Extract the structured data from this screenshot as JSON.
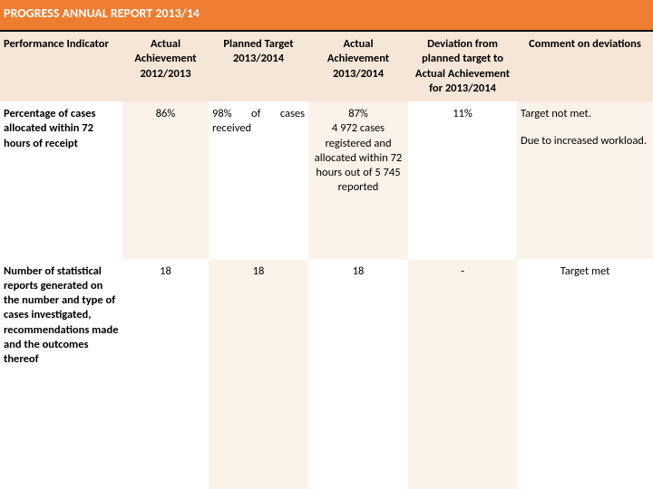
{
  "title": "PROGRESS ANNUAL REPORT 2013/14",
  "colors": {
    "headerBg": "#ed7d31",
    "headerText": "#ffffff",
    "titleBorder": "#000000",
    "colHeaderBg": "#f6e6d8",
    "colHeaderText": "#000000",
    "firstColBg": "#ffffff",
    "cellAltBg": "#fbf2ea",
    "cellBg": "#ffffff",
    "cellText": "#000000"
  },
  "columns": {
    "c0": "Performance Indicator",
    "c1": "Actual Achievement 2012/2013",
    "c2": "Planned Target 2013/2014",
    "c3": "Actual Achievement 2013/2014",
    "c4": "Deviation from planned target to Actual Achievement for 2013/2014",
    "c5": "Comment on deviations"
  },
  "widths": {
    "c0": 135,
    "c1": 95,
    "c2": 110,
    "c3": 110,
    "c4": 120,
    "c5": 150
  },
  "rows": [
    {
      "indicator": "Percentage of cases allocated within 72 hours of receipt",
      "prev": "86%",
      "target": "98% of cases received",
      "actual_l1": "87%",
      "actual_l2": "4 972 cases registered and allocated within 72 hours out of 5 745 reported",
      "deviation": "11%",
      "comment_l1": "Target not met.",
      "comment_l2": "Due to increased workload."
    },
    {
      "indicator": "Number of statistical reports generated on the number and type of cases investigated, recommendations made and the outcomes thereof",
      "prev": "18",
      "target": "18",
      "actual_l1": "18",
      "actual_l2": "",
      "deviation": "-",
      "comment_l1": "Target met",
      "comment_l2": ""
    }
  ]
}
